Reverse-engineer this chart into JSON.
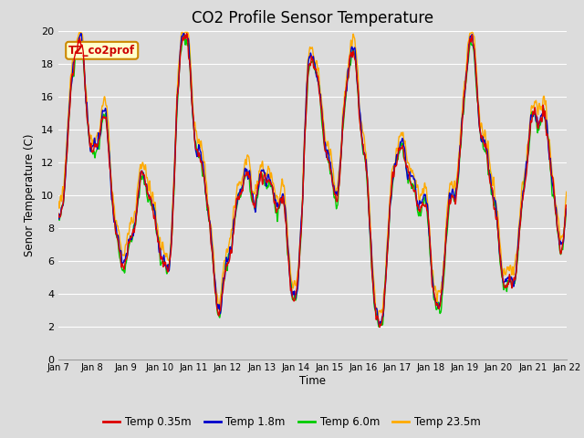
{
  "title": "CO2 Profile Sensor Temperature",
  "xlabel": "Time",
  "ylabel": "Senor Temperature (C)",
  "ylim": [
    0,
    20
  ],
  "annotation": "TZ_co2prof",
  "x_tick_labels": [
    "Jan 7",
    "Jan 8",
    "Jan 9",
    "Jan 10",
    "Jan 11",
    "Jan 12",
    "Jan 13",
    "Jan 14",
    "Jan 15",
    "Jan 16",
    "Jan 17",
    "Jan 18",
    "Jan 19",
    "Jan 20",
    "Jan 21",
    "Jan 22"
  ],
  "series_colors": [
    "#dd0000",
    "#0000cc",
    "#00cc00",
    "#ffaa00"
  ],
  "series_labels": [
    "Temp 0.35m",
    "Temp 1.8m",
    "Temp 6.0m",
    "Temp 23.5m"
  ],
  "bg_color": "#dcdcdc",
  "grid_color": "#ffffff",
  "title_fontsize": 12,
  "figsize": [
    6.4,
    4.8
  ],
  "dpi": 100
}
